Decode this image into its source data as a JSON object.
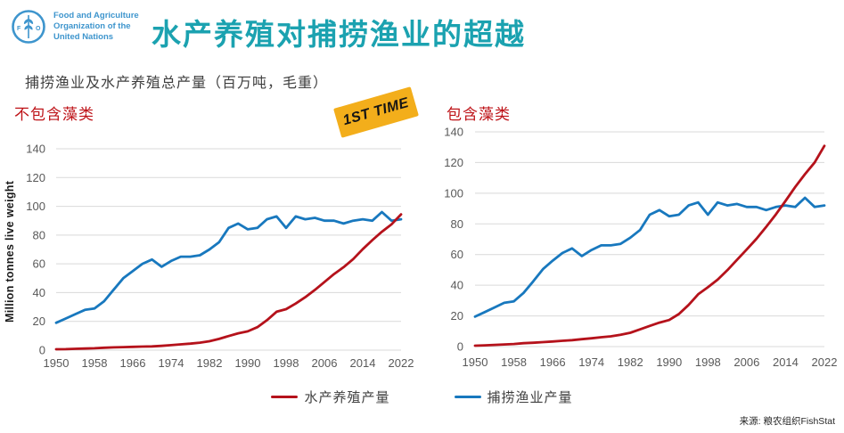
{
  "header": {
    "logo": {
      "lines": [
        "Food and Agriculture",
        "Organization of the",
        "United Nations"
      ]
    },
    "title": "水产养殖对捕捞渔业的超越"
  },
  "subtitle": "捕捞渔业及水产养殖总产量（百万吨，毛重）",
  "badge": {
    "label": "1ST TIME"
  },
  "y_axis_label": "Million tonnes live weight",
  "legend": [
    {
      "label": "水产养殖产量",
      "color": "#B5121B"
    },
    {
      "label": "捕捞渔业产量",
      "color": "#1878BE"
    }
  ],
  "source": "来源: 粮农组织FishStat",
  "colors": {
    "title": "#1BA2B0",
    "section_title": "#BE1318",
    "badge_bg": "#F3AE1B",
    "grid": "#D9D9D9",
    "tick": "#595959",
    "logo_blue": "#3E95CD"
  },
  "chart_data": [
    {
      "type": "line",
      "title": "不包含藻类",
      "ylabel": "Million tonnes live weight",
      "xlabel": "",
      "ylim": [
        0,
        140
      ],
      "yticks": [
        0,
        20,
        40,
        60,
        80,
        100,
        120,
        140
      ],
      "xticks": [
        1950,
        1958,
        1966,
        1974,
        1982,
        1990,
        1998,
        2006,
        2014,
        2022
      ],
      "grid": true,
      "legend_position": "bottom",
      "x": [
        1950,
        1952,
        1954,
        1956,
        1958,
        1960,
        1962,
        1964,
        1966,
        1968,
        1970,
        1972,
        1974,
        1976,
        1978,
        1980,
        1982,
        1984,
        1986,
        1988,
        1990,
        1992,
        1994,
        1996,
        1998,
        2000,
        2002,
        2004,
        2006,
        2008,
        2010,
        2012,
        2014,
        2016,
        2018,
        2020,
        2022
      ],
      "series": [
        {
          "name": "水产养殖产量",
          "color": "#B5121B",
          "values": [
            0.6,
            0.7,
            0.9,
            1.1,
            1.3,
            1.7,
            1.9,
            2.1,
            2.3,
            2.5,
            2.6,
            3.0,
            3.5,
            4.0,
            4.5,
            5.2,
            6.2,
            7.8,
            9.8,
            11.7,
            13.1,
            16.0,
            20.8,
            26.7,
            28.5,
            32.4,
            36.8,
            41.9,
            47.3,
            52.9,
            57.7,
            63.3,
            70.2,
            76.5,
            82.3,
            87.5,
            94.4
          ]
        },
        {
          "name": "捕捞渔业产量",
          "color": "#1878BE",
          "values": [
            19,
            22,
            25,
            28,
            29,
            34,
            42,
            50,
            55,
            60,
            63,
            58,
            62,
            65,
            65,
            66,
            70,
            75,
            85,
            88,
            84,
            85,
            91,
            93,
            85,
            93,
            91,
            92,
            90,
            90,
            88,
            90,
            91,
            90,
            96,
            90,
            91
          ]
        }
      ]
    },
    {
      "type": "line",
      "title": "包含藻类",
      "ylabel": "",
      "xlabel": "",
      "ylim": [
        0,
        140
      ],
      "yticks": [
        0,
        20,
        40,
        60,
        80,
        100,
        120,
        140
      ],
      "xticks": [
        1950,
        1958,
        1966,
        1974,
        1982,
        1990,
        1998,
        2006,
        2014,
        2022
      ],
      "grid": true,
      "legend_position": "bottom",
      "x": [
        1950,
        1952,
        1954,
        1956,
        1958,
        1960,
        1962,
        1964,
        1966,
        1968,
        1970,
        1972,
        1974,
        1976,
        1978,
        1980,
        1982,
        1984,
        1986,
        1988,
        1990,
        1992,
        1994,
        1996,
        1998,
        2000,
        2002,
        2004,
        2006,
        2008,
        2010,
        2012,
        2014,
        2016,
        2018,
        2020,
        2022
      ],
      "series": [
        {
          "name": "水产养殖产量",
          "color": "#B5121B",
          "values": [
            0.6,
            0.8,
            1.1,
            1.4,
            1.7,
            2.2,
            2.5,
            2.9,
            3.3,
            3.8,
            4.2,
            4.8,
            5.4,
            6.1,
            6.7,
            7.7,
            9.0,
            11.2,
            13.5,
            15.6,
            17.3,
            21.2,
            27.1,
            34.1,
            38.7,
            43.6,
            49.8,
            56.6,
            63.4,
            70.3,
            78.1,
            86.2,
            95.0,
            104.1,
            112.4,
            120.1,
            130.9
          ]
        },
        {
          "name": "捕捞渔业产量",
          "color": "#1878BE",
          "values": [
            19.5,
            22.5,
            25.5,
            28.5,
            29.5,
            35,
            42.5,
            50.5,
            56,
            61,
            64,
            59,
            63,
            66,
            66,
            67,
            71,
            76,
            86,
            89,
            85,
            86,
            92,
            94,
            86,
            94,
            92,
            93,
            91,
            91,
            89,
            91,
            92,
            91,
            97,
            91,
            92
          ]
        }
      ]
    }
  ]
}
